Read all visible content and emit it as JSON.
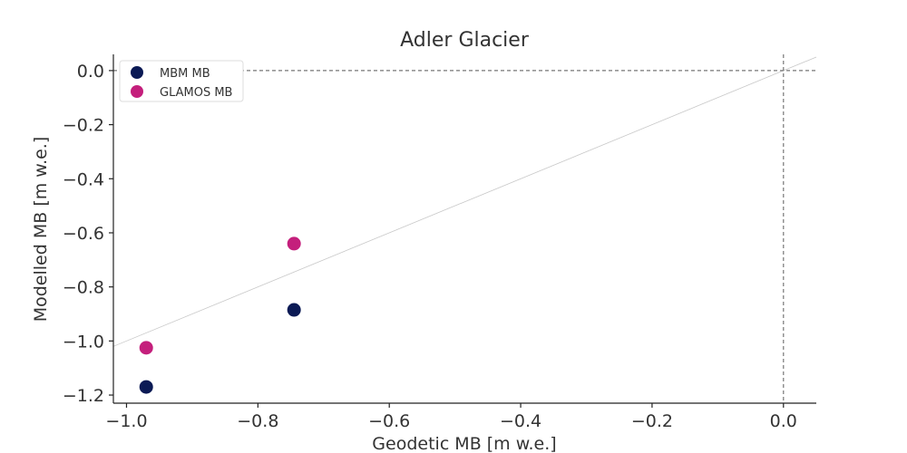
{
  "chart_data": {
    "type": "scatter",
    "title": "Adler Glacier",
    "xlabel": "Geodetic MB [m w.e.]",
    "ylabel": "Modelled MB [m w.e.]",
    "xlim": [
      -1.02,
      0.05
    ],
    "ylim": [
      -1.23,
      0.06
    ],
    "xticks": [
      -1.0,
      -0.8,
      -0.6,
      -0.4,
      -0.2,
      0.0
    ],
    "yticks": [
      0.0,
      -0.2,
      -0.4,
      -0.6,
      -0.8,
      -1.0,
      -1.2
    ],
    "xtick_labels": [
      "−1.0",
      "−0.8",
      "−0.6",
      "−0.4",
      "−0.2",
      "0.0"
    ],
    "ytick_labels": [
      "0.0",
      "−0.2",
      "−0.4",
      "−0.6",
      "−0.8",
      "−1.0",
      "−1.2"
    ],
    "grid": false,
    "legend_position": "top-left",
    "reference_lines": {
      "identity_line": true,
      "zero_lines": true
    },
    "series": [
      {
        "name": "MBM MB",
        "color": "#0b1a55",
        "points": [
          {
            "x": -0.97,
            "y": -1.17
          },
          {
            "x": -0.745,
            "y": -0.885
          }
        ]
      },
      {
        "name": "GLAMOS MB",
        "color": "#c41f7c",
        "points": [
          {
            "x": -0.97,
            "y": -1.025
          },
          {
            "x": -0.745,
            "y": -0.64
          }
        ]
      }
    ]
  }
}
